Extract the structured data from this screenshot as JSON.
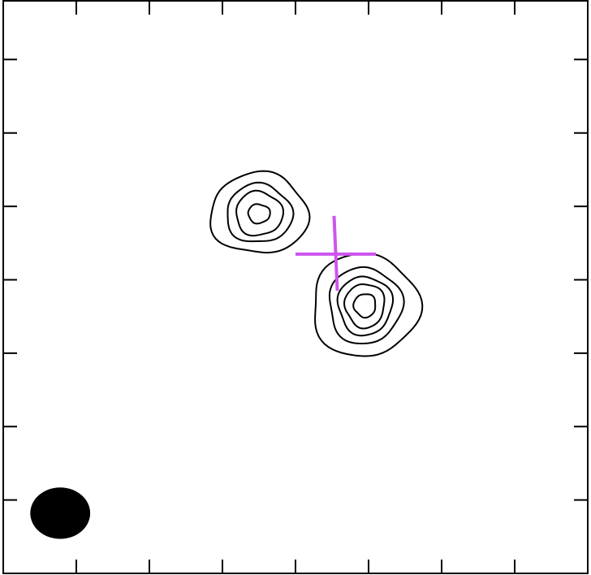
{
  "chart_data": {
    "type": "contour",
    "title": "",
    "xlabel": "",
    "ylabel": "",
    "tick_labels_shown": false,
    "grid": false,
    "legend": "none",
    "colors": {
      "frame": "#000000",
      "contour": "#000000",
      "marker": "#cc55ee",
      "beam": "#000000"
    },
    "components": [
      {
        "name": "",
        "center": [
          3.5,
          4.9
        ],
        "rings": [
          {
            "rx": 0.67,
            "ry": 0.55
          },
          {
            "rx": 0.45,
            "ry": 0.4
          },
          {
            "rx": 0.32,
            "ry": 0.3
          },
          {
            "rx": 0.15,
            "ry": 0.13
          }
        ]
      },
      {
        "name": "",
        "center": [
          4.95,
          3.65
        ],
        "rings": [
          {
            "rx": 0.73,
            "ry": 0.7
          },
          {
            "rx": 0.5,
            "ry": 0.52
          },
          {
            "rx": 0.37,
            "ry": 0.4
          },
          {
            "rx": 0.27,
            "ry": 0.3
          },
          {
            "rx": 0.15,
            "ry": 0.16
          }
        ]
      }
    ],
    "marker": {
      "shape": "cross",
      "center": [
        4.55,
        4.35
      ],
      "half_width": 0.55,
      "half_height_up": 0.52,
      "half_height_down": 0.5
    },
    "beam": {
      "center": [
        0.78,
        0.82
      ],
      "rx": 0.41,
      "ry": 0.35
    },
    "xlim": [
      0,
      8
    ],
    "ylim": [
      0,
      7.8
    ],
    "x_ticks": [
      1,
      2,
      3,
      4,
      5,
      6,
      7,
      8
    ],
    "y_ticks": [
      1,
      2,
      3,
      4,
      5,
      6,
      7
    ]
  }
}
